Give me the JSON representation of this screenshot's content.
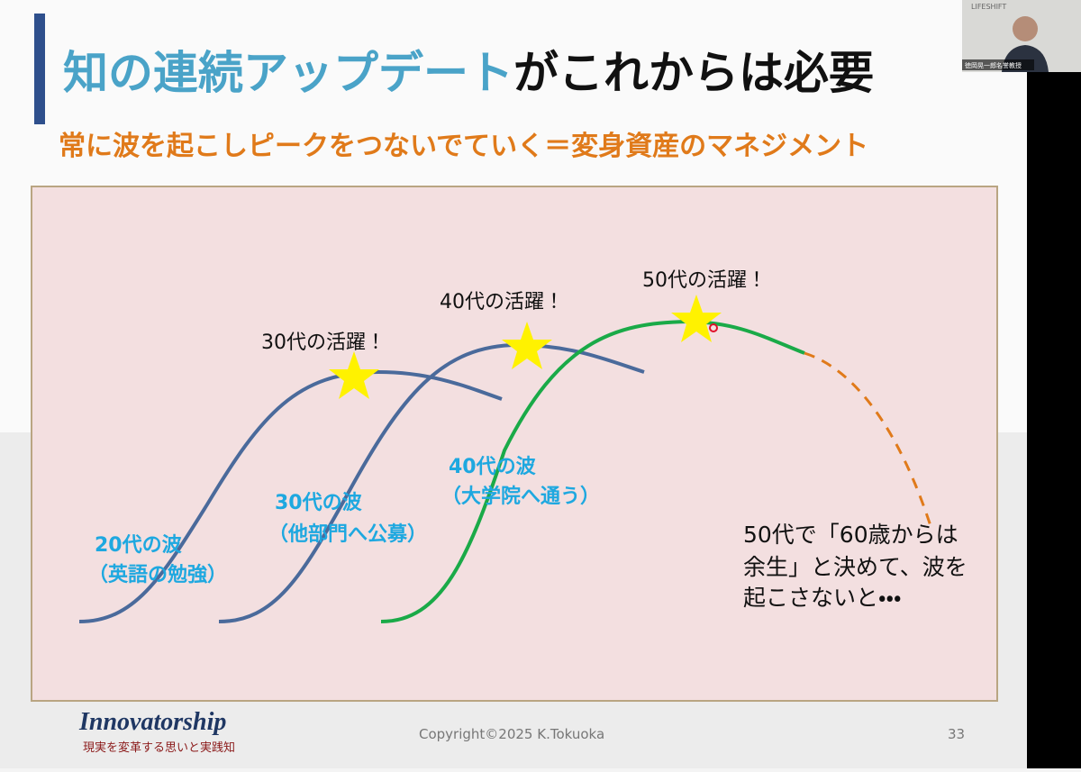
{
  "webcam": {
    "brand": "LIFESHIFT",
    "caption": "徳岡晃一郎名誉教授"
  },
  "slide": {
    "title_highlight": "知の連続アップデート",
    "title_rest": "がこれからは必要",
    "subtitle": "常に波を起こしピークをつないでていく＝変身資産のマネジメント",
    "peaks": [
      "30代の活躍！",
      "40代の活躍！",
      "50代の活躍！"
    ],
    "waves": [
      {
        "name": "20代の波",
        "detail": "（英語の勉強）"
      },
      {
        "name": "30代の波",
        "detail": "（他部門へ公募）"
      },
      {
        "name": "40代の波",
        "detail": "（大学院へ通う）"
      }
    ],
    "note": [
      "50代で「60歳からは",
      "余生」と決めて、波を",
      "起こさないと・・・"
    ],
    "logo": "Innovatorship",
    "logo_tagline": "現実を変革する思いと実践知",
    "copyright": "Copyright©2025 K.Tokuoka",
    "page_number": "33"
  }
}
